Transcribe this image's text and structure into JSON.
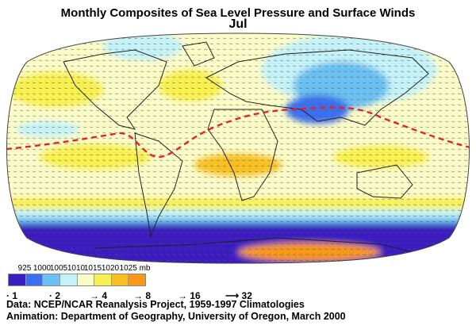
{
  "title": "Monthly Composites of Sea Level Pressure and Surface Winds",
  "month": "Jul",
  "pressure_legend": {
    "unit": "mb",
    "ticks": [
      "925",
      "1000",
      "1005",
      "1010",
      "1015",
      "1020",
      "1025 mb"
    ],
    "colors": [
      "#3a1fc0",
      "#3a6ff0",
      "#6ac0f0",
      "#c4f2f8",
      "#fcfcc8",
      "#f8f050",
      "#f8c020",
      "#f89818"
    ]
  },
  "wind_legend": [
    "1",
    "2",
    "4",
    "8",
    "16",
    "32"
  ],
  "credits": {
    "data": "Data: NCEP/NCAR Reanalysis Project, 1959-1997 Climatologies",
    "animation": "Animation: Department of Geography, University of Oregon, March 2000"
  },
  "itcz_line_color": "#e8202a"
}
